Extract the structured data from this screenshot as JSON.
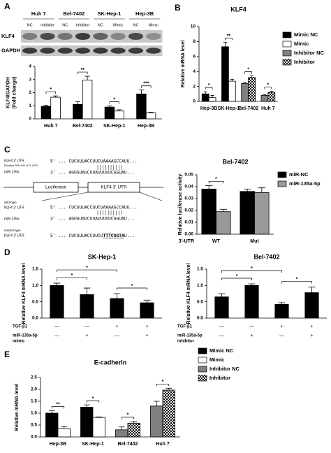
{
  "panel_labels": [
    "A",
    "B",
    "C",
    "D",
    "E"
  ],
  "blot": {
    "groups": [
      {
        "name": "Huh 7",
        "lanes": [
          "NC",
          "Inhibitor"
        ]
      },
      {
        "name": "Bel-7402",
        "lanes": [
          "NC",
          "Inhibitor"
        ]
      },
      {
        "name": "SK-Hep-1",
        "lanes": [
          "NC",
          "Mimic"
        ]
      },
      {
        "name": "Hep-3B",
        "lanes": [
          "NC",
          "Mimic"
        ]
      }
    ],
    "rows": [
      "KLF4",
      "GAPDH"
    ]
  },
  "diagram": {
    "top": {
      "utr_label": "KLF4 3' UTR",
      "position": "Position 359-402 of 3' UTR",
      "mir_label": "miR-135a",
      "utr_seq": "5' ... CUCUUUACCUUCUAAAAGCCAUU...",
      "mir_seq": "3' ... AGUGUAUCUUAUUUUUCGGUAU..."
    },
    "construct": [
      "Luciferase",
      "KLF4 3' UTR"
    ],
    "wild": {
      "kind": "wild-type",
      "utr_label": "KLF4 3' UTR",
      "utr_seq": "5' ... CUCUUUACCUUCUAAAAGCCAUU...",
      "mir_label": "miR-135a",
      "mir_seq": "3' ... AGUGUAUCUUAUUUUUCGGUAU..."
    },
    "mutant": {
      "kind": "mutant-type",
      "utr_label": "KLF4 3' UTR",
      "utr_seq": [
        "5' ... CUCUUUACCUUCU",
        "TTTCGGTA",
        "U..."
      ]
    }
  },
  "chart_data": [
    {
      "type": "bar",
      "ylabel": [
        "KLF4/GAPDH",
        "(Fold change)"
      ],
      "categories": [
        "Huh 7",
        "Bel-7402",
        "SK-Hep-1",
        "Hep-3B"
      ],
      "series": [
        {
          "color": "#000000",
          "values": [
            0.95,
            1.1,
            0.9,
            1.9
          ],
          "errors": [
            0.08,
            0.2,
            0.08,
            0.3
          ]
        },
        {
          "color": "#ffffff",
          "values": [
            1.65,
            2.95,
            0.6,
            0.45
          ],
          "errors": [
            0.1,
            0.3,
            0.1,
            0.05
          ]
        }
      ],
      "ylim": [
        0,
        4
      ],
      "yticks": [
        0,
        1,
        2,
        3,
        4
      ],
      "annotations": [
        "*",
        "**",
        "*",
        "***"
      ]
    },
    {
      "type": "bar",
      "title": "KLF4",
      "ylabel": [
        "Relative mRNA level"
      ],
      "categories": [
        "Hep-3B",
        "SK-Hep-1",
        "Bel-7402",
        "Huh 7"
      ],
      "series": [
        {
          "name": "Mimic NC",
          "color": "#000000",
          "values": [
            1.0,
            7.3,
            null,
            null
          ],
          "errors": [
            0.3,
            0.6,
            null,
            null
          ]
        },
        {
          "name": "Mimic",
          "color": "#ffffff",
          "values": [
            0.5,
            2.7,
            null,
            null
          ],
          "errors": [
            0.3,
            0.25,
            null,
            null
          ]
        },
        {
          "name": "Inhibitor NC",
          "color": "#808080",
          "values": [
            null,
            null,
            2.4,
            0.8
          ],
          "errors": [
            null,
            null,
            0.15,
            0.1
          ]
        },
        {
          "name": "Inhibitor",
          "color": "#000000",
          "pattern": "checker",
          "values": [
            null,
            null,
            3.2,
            1.2
          ],
          "errors": [
            null,
            null,
            0.2,
            0.15
          ]
        }
      ],
      "ylim": [
        0,
        10
      ],
      "yticks": [
        0,
        2,
        4,
        6,
        8,
        10
      ],
      "annotations": [
        "*",
        "**",
        "*",
        "*"
      ],
      "legend": "right"
    },
    {
      "type": "bar",
      "title": "Bel-7402",
      "ylabel": [
        "Relative luciferase activity"
      ],
      "xlabel": "3'-UTR",
      "categories": [
        "WT",
        "Mut"
      ],
      "series": [
        {
          "name": "miR-NC",
          "color": "#000000",
          "values": [
            0.038,
            0.036
          ],
          "errors": [
            0.003,
            0.002
          ]
        },
        {
          "name": "miR-135a-5p",
          "color": "#999999",
          "values": [
            0.019,
            0.035
          ],
          "errors": [
            0.002,
            0.004
          ]
        }
      ],
      "ylim": [
        0,
        0.05
      ],
      "yticks": [
        {
          "value": 0,
          "label": "0.00"
        },
        0.01,
        0.02,
        0.03,
        0.04,
        0.05
      ],
      "annotations": [
        "*",
        null
      ],
      "legend": "right"
    },
    {
      "type": "bar",
      "title": "SK-Hep-1",
      "ylabel": [
        "Relative KLF4 mRNA level"
      ],
      "color": "#000000",
      "values": [
        1.0,
        0.72,
        0.6,
        0.47
      ],
      "errors": [
        0.07,
        0.2,
        0.15,
        0.08
      ],
      "ylim": [
        0,
        1.5
      ],
      "yticks": [
        {
          "value": 0,
          "label": "0.0"
        },
        0.5,
        {
          "value": 1,
          "label": "1.0"
        },
        1.5
      ],
      "conditions": [
        {
          "label": [
            "TGF-β1"
          ],
          "values": [
            "—",
            "—",
            "+",
            "+"
          ]
        },
        {
          "label": [
            "miR-135a-5p",
            "mimic"
          ],
          "values": [
            "—",
            "+",
            "—",
            "+"
          ]
        }
      ],
      "comparisons": [
        {
          "label": "*",
          "between": [
            0,
            2
          ]
        },
        {
          "label": "*",
          "between": [
            0,
            1
          ]
        },
        {
          "label": "*",
          "between": [
            2,
            3
          ]
        }
      ]
    },
    {
      "type": "bar",
      "title": "Bel-7402",
      "ylabel": [
        "Relative KLF4 mRNA level"
      ],
      "color": "#000000",
      "values": [
        0.65,
        1.0,
        0.42,
        0.78
      ],
      "errors": [
        0.1,
        0.05,
        0.05,
        0.17
      ],
      "ylim": [
        0,
        1.5
      ],
      "yticks": [
        {
          "value": 0,
          "label": "0.0"
        },
        0.5,
        {
          "value": 1,
          "label": "1.0"
        },
        1.5
      ],
      "conditions": [
        {
          "label": [
            "TGF-β1"
          ],
          "values": [
            "—",
            "—",
            "+",
            "+"
          ]
        },
        {
          "label": [
            "miR-135a-5p",
            "inhibitor"
          ],
          "values": [
            "—",
            "+",
            "—",
            "+"
          ]
        }
      ],
      "comparisons": [
        {
          "label": "*",
          "between": [
            0,
            2
          ]
        },
        {
          "label": "*",
          "between": [
            0,
            1
          ]
        },
        {
          "label": "*",
          "between": [
            2,
            3
          ]
        }
      ]
    },
    {
      "type": "bar",
      "title": "E-cadherin",
      "ylabel": [
        "Relative mRNA level"
      ],
      "categories": [
        "Hep-3B",
        "SK-Hep-1",
        "Bel-7402",
        "Huh 7"
      ],
      "series": [
        {
          "name": "Mimic NC",
          "color": "#000000",
          "values": [
            1.0,
            1.25,
            null,
            null
          ],
          "errors": [
            0.1,
            0.1,
            null,
            null
          ]
        },
        {
          "name": "Mimic",
          "color": "#ffffff",
          "values": [
            0.35,
            0.82,
            null,
            null
          ],
          "errors": [
            0.08,
            0.02,
            null,
            null
          ]
        },
        {
          "name": "Inhibitor NC",
          "color": "#808080",
          "values": [
            null,
            null,
            0.3,
            1.3
          ],
          "errors": [
            null,
            null,
            0.12,
            0.2
          ]
        },
        {
          "name": "Inhibitor",
          "color": "#000000",
          "pattern": "checker",
          "values": [
            null,
            null,
            0.58,
            1.97
          ],
          "errors": [
            null,
            null,
            0.07,
            0.08
          ]
        }
      ],
      "ylim": [
        0,
        2.5
      ],
      "yticks": [
        {
          "value": 0,
          "label": "0.0"
        },
        0.5,
        {
          "value": 1,
          "label": "1.0"
        },
        1.5,
        {
          "value": 2,
          "label": "2.0"
        },
        2.5
      ],
      "annotations": [
        "**",
        "*",
        "*",
        "*"
      ],
      "legend": "right"
    }
  ]
}
